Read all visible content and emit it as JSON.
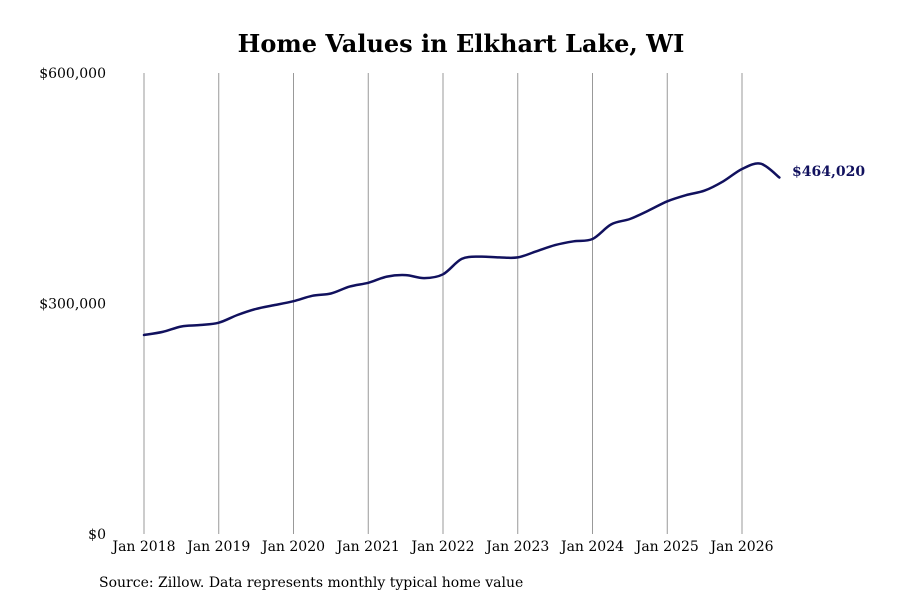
{
  "chart_data": {
    "type": "line",
    "title": "Home Values in Elkhart Lake, WI",
    "source": "Source: Zillow. Data represents monthly typical home value",
    "xlabel": "",
    "ylabel": "",
    "ylim": [
      0,
      600000
    ],
    "y_ticks": [
      {
        "value": 0,
        "label": "$0"
      },
      {
        "value": 300000,
        "label": "$300,000"
      },
      {
        "value": 600000,
        "label": "$600,000"
      }
    ],
    "x_ticks": [
      {
        "value": "2018-01",
        "label": "Jan 2018"
      },
      {
        "value": "2019-01",
        "label": "Jan 2019"
      },
      {
        "value": "2020-01",
        "label": "Jan 2020"
      },
      {
        "value": "2021-01",
        "label": "Jan 2021"
      },
      {
        "value": "2022-01",
        "label": "Jan 2022"
      },
      {
        "value": "2023-01",
        "label": "Jan 2023"
      },
      {
        "value": "2024-01",
        "label": "Jan 2024"
      },
      {
        "value": "2025-01",
        "label": "Jan 2025"
      },
      {
        "value": "2026-01",
        "label": "Jan 2026"
      }
    ],
    "xlim": [
      "2018-01",
      "2026-07"
    ],
    "grid": "vertical",
    "series_color": "#11115e",
    "gridline_color": "#999999",
    "end_label": "$464,020",
    "series": [
      {
        "x": [
          "2018-01",
          "2018-04",
          "2018-07",
          "2018-10",
          "2019-01",
          "2019-04",
          "2019-07",
          "2019-10",
          "2020-01",
          "2020-04",
          "2020-07",
          "2020-10",
          "2021-01",
          "2021-04",
          "2021-07",
          "2021-10",
          "2022-01",
          "2022-04",
          "2022-07",
          "2022-10",
          "2023-01",
          "2023-04",
          "2023-07",
          "2023-10",
          "2024-01",
          "2024-04",
          "2024-07",
          "2024-10",
          "2025-01",
          "2025-04",
          "2025-07",
          "2025-10",
          "2026-01",
          "2026-04",
          "2026-07"
        ],
        "values": [
          259000,
          263000,
          270000,
          272000,
          275000,
          285000,
          293000,
          298000,
          303000,
          310000,
          313000,
          322000,
          327000,
          335000,
          337000,
          333000,
          338000,
          358000,
          361000,
          360000,
          360000,
          368000,
          376000,
          381000,
          384000,
          403000,
          410000,
          421000,
          433000,
          441000,
          447000,
          459000,
          475000,
          482000,
          464020
        ]
      }
    ]
  }
}
